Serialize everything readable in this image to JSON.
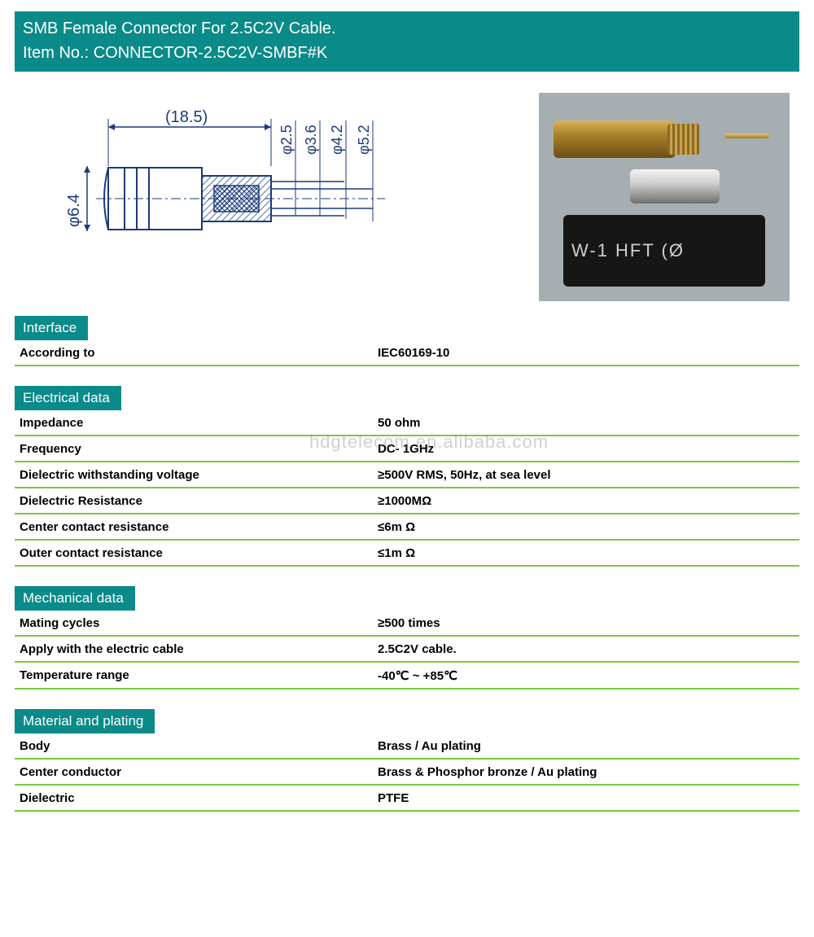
{
  "header": {
    "line1": "SMB Female Connector For 2.5C2V Cable.",
    "line2": "Item No.: CONNECTOR-2.5C2V-SMBF#K"
  },
  "colors": {
    "teal": "#0a8a88",
    "green_rule": "#7ac943",
    "text": "#000000",
    "white": "#ffffff"
  },
  "diagram": {
    "length_label": "(18.5)",
    "left_dia": "φ6.4",
    "dia_labels": [
      "φ2.5",
      "φ3.6",
      "φ4.2",
      "φ5.2"
    ]
  },
  "photo": {
    "tube_text": "W-1 HFT (Ø"
  },
  "watermark": "hdgtelecom.en.alibaba.com",
  "sections": [
    {
      "title": "Interface",
      "rows": [
        {
          "label": "According to",
          "value": "IEC60169-10"
        }
      ]
    },
    {
      "title": "Electrical data",
      "rows": [
        {
          "label": "Impedance",
          "value": "50 ohm"
        },
        {
          "label": "Frequency",
          "value": "DC- 1GHz"
        },
        {
          "label": "Dielectric withstanding voltage",
          "value": "≥500V RMS, 50Hz, at sea level"
        },
        {
          "label": "Dielectric Resistance",
          "value": "≥1000MΩ"
        },
        {
          "label": "Center contact resistance",
          "value": "≤6m Ω"
        },
        {
          "label": "Outer contact resistance",
          "value": "≤1m Ω"
        }
      ]
    },
    {
      "title": "Mechanical data",
      "rows": [
        {
          "label": "Mating cycles",
          "value": "≥500 times"
        },
        {
          "label": "Apply with the electric cable",
          "value": "2.5C2V cable."
        },
        {
          "label": "Temperature range",
          "value": "-40℃ ~ +85℃"
        }
      ]
    },
    {
      "title": "Material and plating",
      "rows": [
        {
          "label": "Body",
          "value": "Brass / Au plating"
        },
        {
          "label": "Center conductor",
          "value": "Brass & Phosphor bronze / Au plating"
        },
        {
          "label": "Dielectric",
          "value": "PTFE"
        }
      ]
    }
  ]
}
